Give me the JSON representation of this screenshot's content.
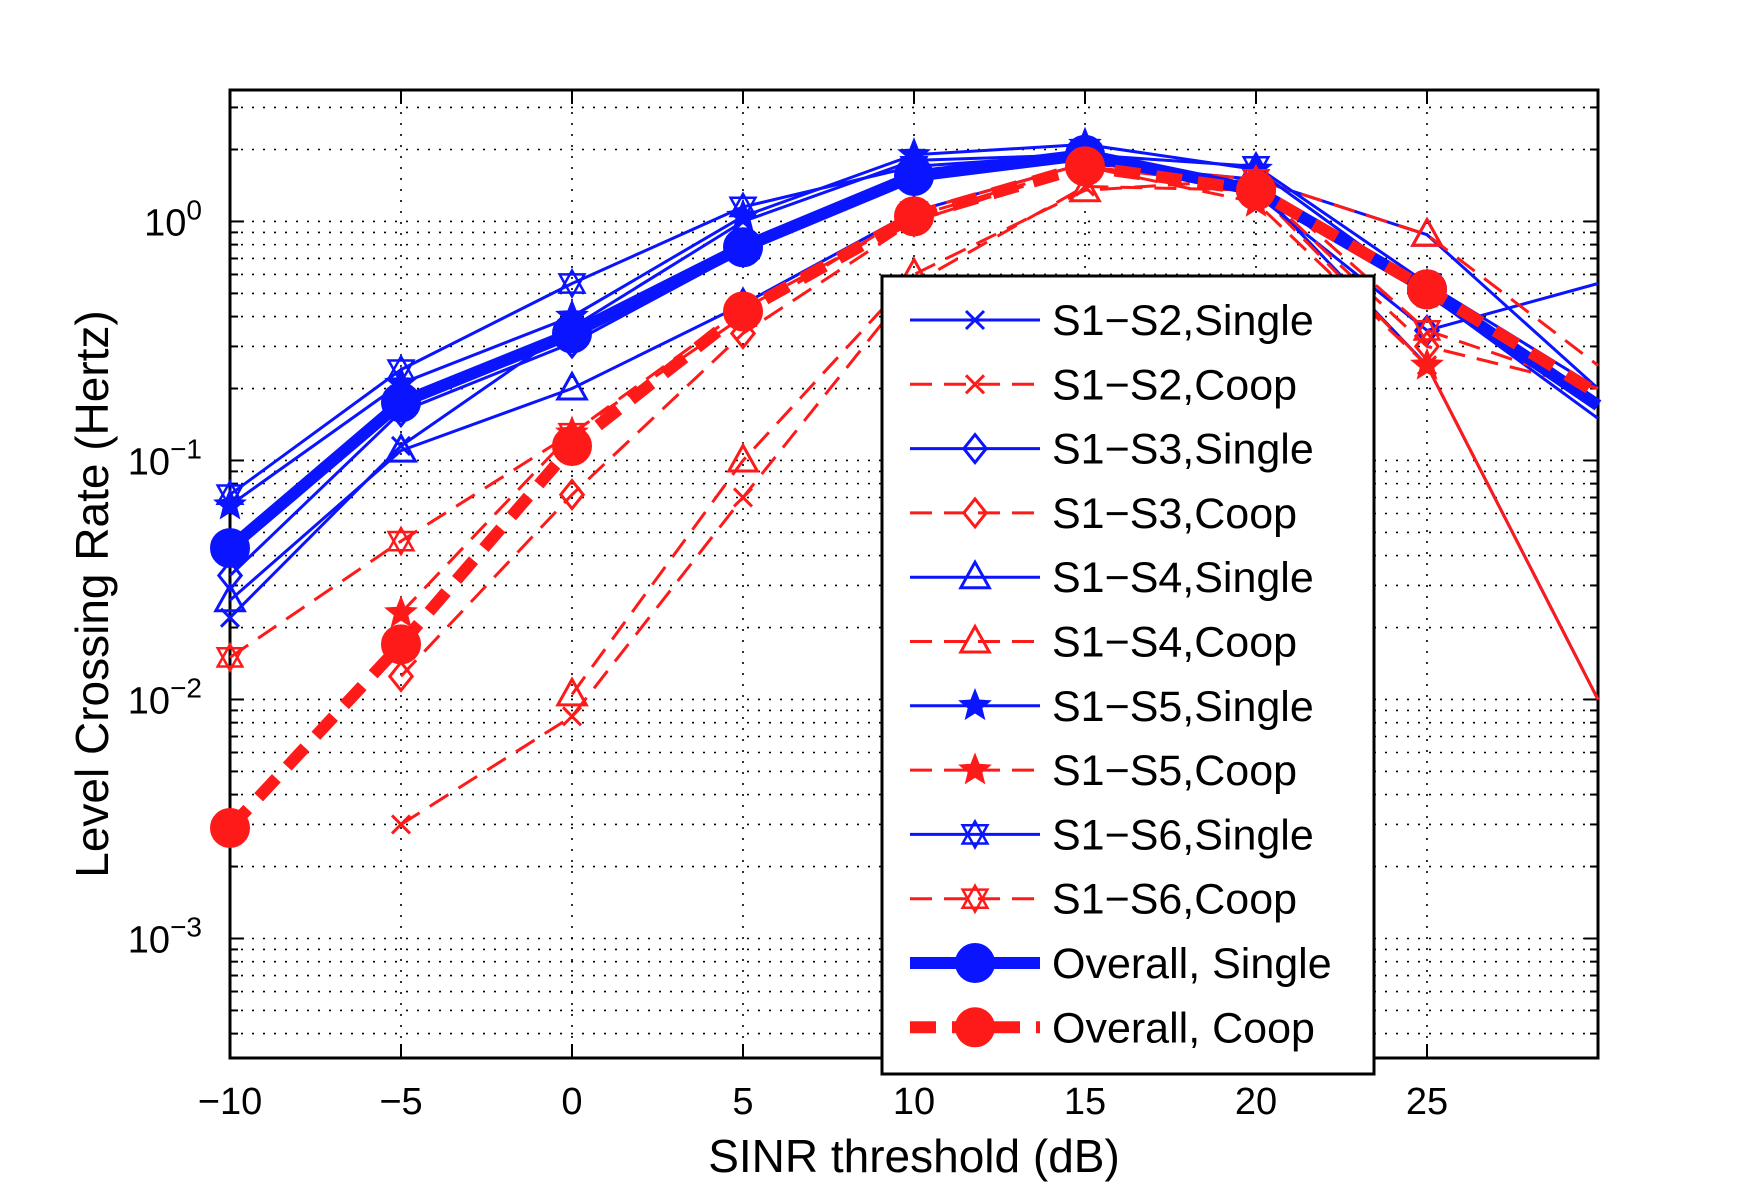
{
  "colors": {
    "single": "#0a14ff",
    "coop": "#ff1a1a"
  },
  "chart_data": {
    "type": "line",
    "title": "",
    "xlabel": "SINR threshold (dB)",
    "ylabel": "Level Crossing Rate (Hertz)",
    "xlim": [
      -10,
      30
    ],
    "ylim_log10": [
      -3.5,
      0.55
    ],
    "yscale": "log",
    "grid": true,
    "legend_position": "center-right",
    "x_ticks": [
      {
        "value": -10,
        "label": "−10"
      },
      {
        "value": -5,
        "label": "−5"
      },
      {
        "value": 0,
        "label": "0"
      },
      {
        "value": 5,
        "label": "5"
      },
      {
        "value": 10,
        "label": "10"
      },
      {
        "value": 15,
        "label": "15"
      },
      {
        "value": 20,
        "label": "20"
      },
      {
        "value": 25,
        "label": "25"
      }
    ],
    "y_ticks": [
      {
        "exp": 0,
        "base": "10",
        "sup": "0"
      },
      {
        "exp": -1,
        "base": "10",
        "sup": "−1"
      },
      {
        "exp": -2,
        "base": "10",
        "sup": "−2"
      },
      {
        "exp": -3,
        "base": "10",
        "sup": "−3"
      }
    ],
    "series": [
      {
        "name": "S1−S2,Single",
        "color": "single",
        "style": "solid",
        "marker": "x",
        "width": 3,
        "x": [
          -10,
          -5,
          0,
          5,
          10,
          15,
          20,
          25,
          30
        ],
        "y": [
          0.022,
          0.115,
          0.36,
          1.0,
          1.8,
          1.9,
          1.4,
          0.25,
          0.01
        ]
      },
      {
        "name": "S1−S2,Coop",
        "color": "coop",
        "style": "dashed",
        "marker": "x",
        "width": 3,
        "x": [
          -5,
          0,
          5,
          10,
          15,
          20,
          25,
          30
        ],
        "y": [
          0.003,
          0.0085,
          0.07,
          0.55,
          1.4,
          1.35,
          0.25,
          0.01
        ]
      },
      {
        "name": "S1−S3,Single",
        "color": "single",
        "style": "solid",
        "marker": "diamond",
        "width": 3,
        "x": [
          -10,
          -5,
          0,
          5,
          10,
          15,
          20,
          25,
          30
        ],
        "y": [
          0.033,
          0.16,
          0.31,
          0.75,
          1.55,
          1.85,
          1.3,
          0.35,
          0.55
        ]
      },
      {
        "name": "S1−S3,Coop",
        "color": "coop",
        "style": "dashed",
        "marker": "diamond",
        "width": 3,
        "x": [
          -5,
          0,
          5,
          10,
          15,
          20,
          25,
          30
        ],
        "y": [
          0.0125,
          0.072,
          0.34,
          1.0,
          1.7,
          1.4,
          0.3,
          0.2
        ]
      },
      {
        "name": "S1−S4,Single",
        "color": "single",
        "style": "solid",
        "marker": "triangle",
        "width": 3,
        "x": [
          -10,
          -5,
          0,
          5,
          10,
          15,
          20,
          25,
          30
        ],
        "y": [
          0.026,
          0.11,
          0.2,
          0.45,
          1.1,
          1.75,
          1.5,
          0.88,
          0.2
        ]
      },
      {
        "name": "S1−S4,Coop",
        "color": "coop",
        "style": "dashed",
        "marker": "triangle",
        "width": 3,
        "x": [
          0,
          5,
          10,
          15,
          20,
          25,
          30
        ],
        "y": [
          0.0105,
          0.1,
          0.6,
          1.35,
          1.5,
          0.88,
          0.25
        ]
      },
      {
        "name": "S1−S5,Single",
        "color": "single",
        "style": "solid",
        "marker": "star",
        "width": 3,
        "x": [
          -10,
          -5,
          0,
          5,
          10,
          15,
          20,
          25,
          30
        ],
        "y": [
          0.065,
          0.21,
          0.4,
          1.05,
          1.9,
          2.1,
          1.65,
          0.5,
          0.15
        ]
      },
      {
        "name": "S1−S5,Coop",
        "color": "coop",
        "style": "dashed",
        "marker": "star",
        "width": 3,
        "x": [
          -5,
          0,
          5,
          10,
          15,
          20,
          25,
          30
        ],
        "y": [
          0.023,
          0.13,
          0.43,
          1.05,
          1.7,
          1.2,
          0.25,
          0.01
        ]
      },
      {
        "name": "S1−S6,Single",
        "color": "single",
        "style": "solid",
        "marker": "hexagram",
        "width": 3,
        "x": [
          -10,
          -5,
          0,
          5,
          10,
          15,
          20,
          25,
          30
        ],
        "y": [
          0.072,
          0.24,
          0.55,
          1.15,
          1.7,
          1.9,
          1.7,
          0.55,
          0.2
        ]
      },
      {
        "name": "S1−S6,Coop",
        "color": "coop",
        "style": "dashed",
        "marker": "hexagram",
        "width": 3,
        "x": [
          -10,
          -5,
          0,
          5,
          10,
          15,
          20,
          25,
          30
        ],
        "y": [
          0.015,
          0.046,
          0.13,
          0.4,
          1.1,
          1.75,
          1.5,
          0.35,
          0.2
        ]
      },
      {
        "name": "Overall, Single",
        "color": "single",
        "style": "solid",
        "marker": "circle",
        "width": 12,
        "x": [
          -10,
          -5,
          0,
          5,
          10,
          15,
          20,
          25,
          30
        ],
        "y": [
          0.043,
          0.175,
          0.34,
          0.78,
          1.55,
          1.9,
          1.35,
          0.52,
          0.17
        ]
      },
      {
        "name": "Overall, Coop",
        "color": "coop",
        "style": "dashed",
        "marker": "circle",
        "width": 12,
        "x": [
          -10,
          -5,
          0,
          5,
          10,
          15,
          20,
          25,
          30
        ],
        "y": [
          0.0029,
          0.017,
          0.115,
          0.42,
          1.05,
          1.7,
          1.35,
          0.52,
          0.19
        ]
      }
    ]
  }
}
